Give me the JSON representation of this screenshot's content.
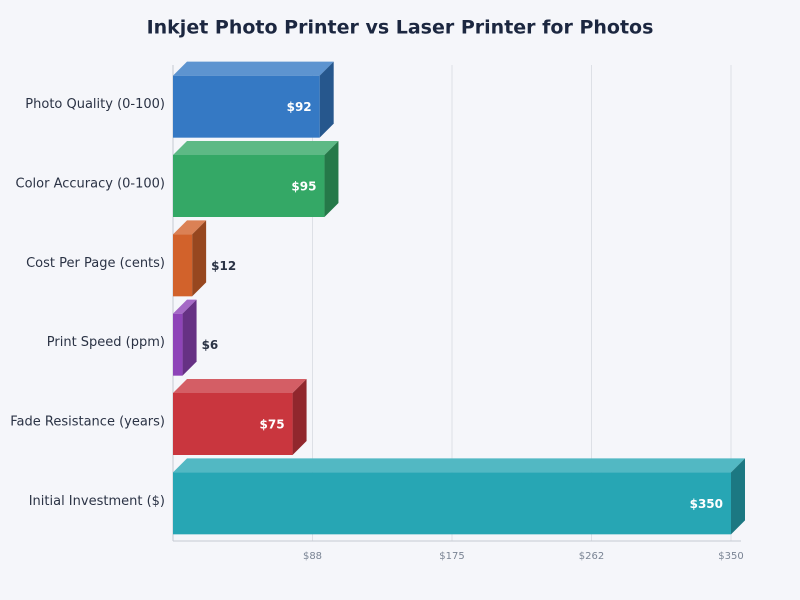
{
  "chart_data": {
    "type": "bar3d",
    "orientation": "horizontal",
    "title": "Inkjet Photo Printer vs Laser Printer for Photos",
    "categories": [
      "Photo Quality (0-100)",
      "Color Accuracy (0-100)",
      "Cost Per Page (cents)",
      "Print Speed (ppm)",
      "Fade Resistance (years)",
      "Initial Investment ($)"
    ],
    "values": [
      92,
      95,
      12,
      6,
      75,
      350
    ],
    "value_labels": [
      "$92",
      "$95",
      "$12",
      "$6",
      "$75",
      "$350"
    ],
    "colors": [
      "#3579c4",
      "#34a866",
      "#d2622b",
      "#8e44b8",
      "#c9363e",
      "#27a6b4"
    ],
    "xlim": [
      0,
      350
    ],
    "xticks": [
      {
        "value": 87.5,
        "label": "$88"
      },
      {
        "value": 175,
        "label": "$175"
      },
      {
        "value": 262.5,
        "label": "$262"
      },
      {
        "value": 350,
        "label": "$350"
      }
    ],
    "grid": true
  }
}
